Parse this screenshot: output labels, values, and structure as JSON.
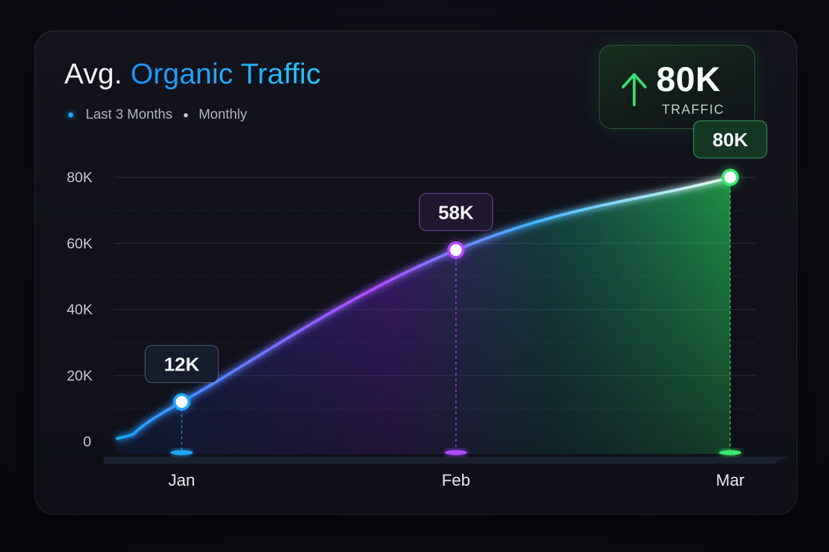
{
  "header": {
    "title_prefix": "Avg.",
    "title_accent": "Organic Traffic",
    "legend_period": "Last 3 Months",
    "legend_frequency": "Monthly"
  },
  "kpi": {
    "value": "80K",
    "label": "TRAFFIC",
    "trend_icon": "arrow-up-icon",
    "color": "#3ddc6e"
  },
  "chart_data": {
    "type": "area",
    "categories": [
      "Jan",
      "Feb",
      "Mar"
    ],
    "series": [
      {
        "values": [
          12,
          58,
          80
        ],
        "data_labels": [
          "12K",
          "58K",
          "80K"
        ]
      }
    ],
    "y_ticks": [
      "0",
      "20K",
      "40K",
      "60K",
      "80K"
    ],
    "ylim": [
      0,
      80
    ],
    "y_unit": "K",
    "grid": true,
    "colors": [
      "#22a8ff",
      "#b14cff",
      "#3ae86e"
    ]
  }
}
